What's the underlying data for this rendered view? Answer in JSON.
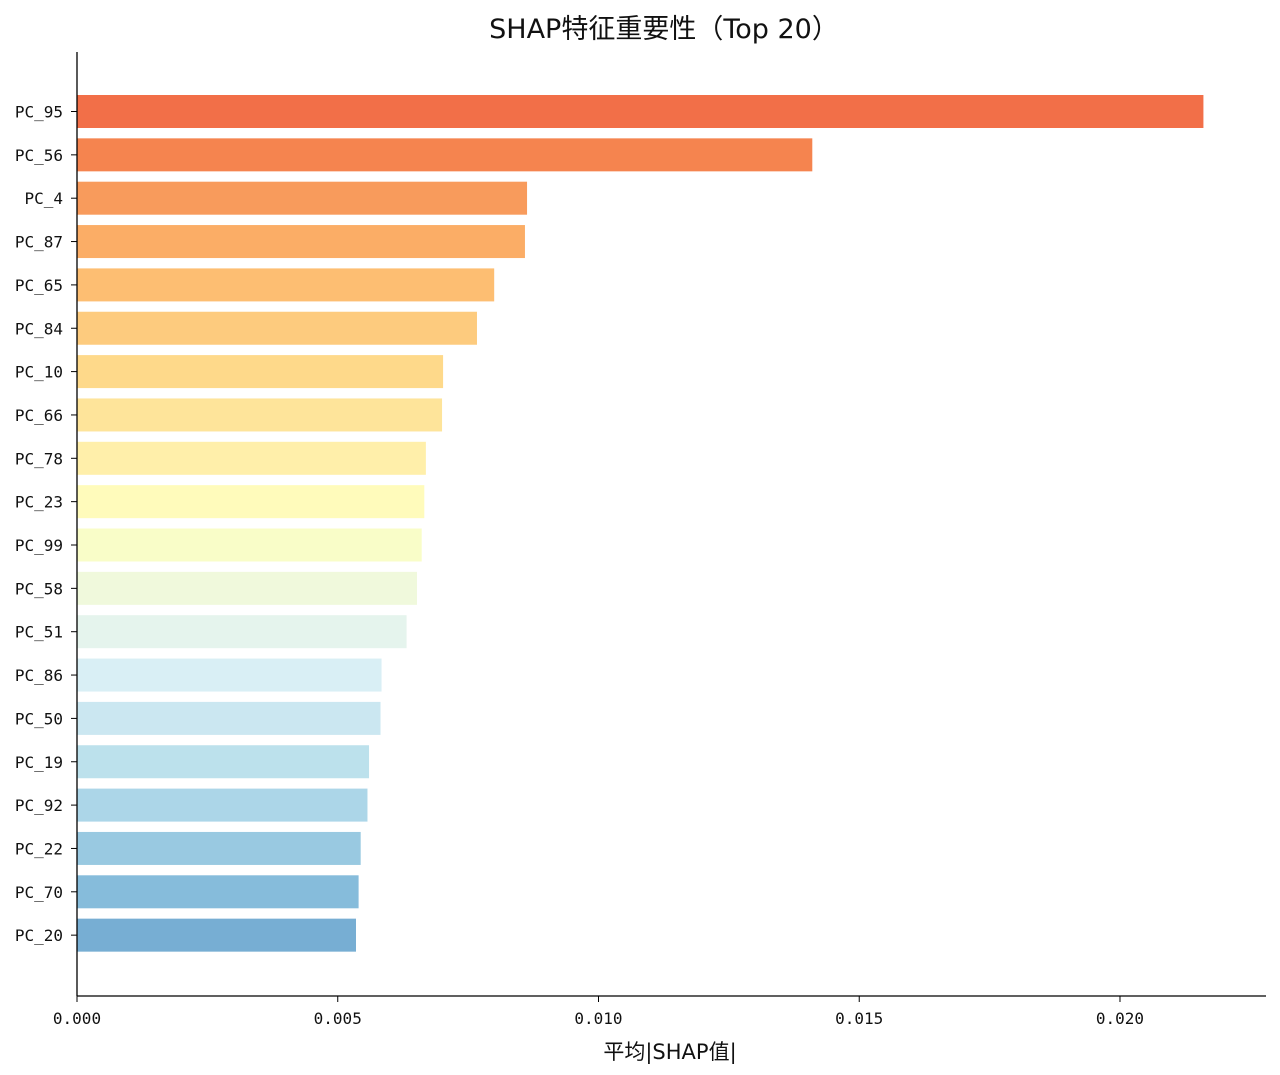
{
  "chart_data": {
    "type": "bar",
    "orientation": "horizontal",
    "title": "SHAP特征重要性（Top 20）",
    "xlabel": "平均|SHAP值|",
    "ylabel": "",
    "xlim": [
      0,
      0.0228
    ],
    "xticks": [
      "0.000",
      "0.005",
      "0.010",
      "0.015",
      "0.020"
    ],
    "xtick_values": [
      0,
      0.005,
      0.01,
      0.015,
      0.02
    ],
    "categories": [
      "PC_95",
      "PC_56",
      "PC_4",
      "PC_87",
      "PC_65",
      "PC_84",
      "PC_10",
      "PC_66",
      "PC_78",
      "PC_23",
      "PC_99",
      "PC_58",
      "PC_51",
      "PC_86",
      "PC_50",
      "PC_19",
      "PC_92",
      "PC_22",
      "PC_70",
      "PC_20"
    ],
    "values": [
      0.0216,
      0.0141,
      0.00863,
      0.00859,
      0.008,
      0.00767,
      0.00702,
      0.007,
      0.00669,
      0.00666,
      0.00661,
      0.00652,
      0.00632,
      0.00584,
      0.00582,
      0.0056,
      0.00557,
      0.00544,
      0.0054,
      0.00535
    ],
    "colors": [
      "#f26f48",
      "#f5844f",
      "#f89b5c",
      "#fbad66",
      "#fdbe72",
      "#fdcb7e",
      "#fed98a",
      "#fee49a",
      "#ffefaa",
      "#fffbbb",
      "#f9fdc8",
      "#f0f9dc",
      "#e5f4ed",
      "#d9eff5",
      "#cbe7f1",
      "#bce1ec",
      "#acd6e8",
      "#99c9e1",
      "#86bcdb",
      "#77aed3"
    ],
    "grid": false,
    "legend": "none"
  }
}
